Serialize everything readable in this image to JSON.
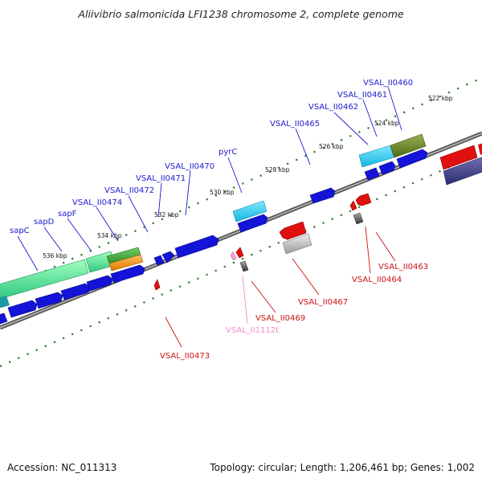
{
  "title": "Aliivibrio salmonicida LFI1238 chromosome 2, complete genome",
  "footer": {
    "accession": "Accession: NC_011313",
    "stats": "Topology: circular; Length: 1,206,461 bp; Genes: 1,002"
  },
  "colors": {
    "forward_label": "#1a1acc",
    "reverse_label": "#cc1111",
    "rna_label": "#f08ccc",
    "backbone": "#777777",
    "tick": "#2a7a2a"
  },
  "kbp_labels": [
    "522 kbp",
    "524 kbp",
    "526 kbp",
    "528 kbp",
    "530 kbp",
    "532 kbp",
    "534 kbp",
    "536 kbp"
  ],
  "forward_genes": [
    "VSAL_II0460",
    "VSAL_II0461",
    "VSAL_II0462",
    "VSAL_II0465",
    "pyrC",
    "VSAL_II0470",
    "VSAL_II0471",
    "VSAL_II0472",
    "VSAL_II0474",
    "sapF",
    "sapD",
    "sapC"
  ],
  "reverse_genes": [
    "VSAL_II0463",
    "VSAL_II0464",
    "VSAL_II0467",
    "VSAL_II0469",
    "VSAL_II1112t",
    "VSAL_II0473"
  ]
}
